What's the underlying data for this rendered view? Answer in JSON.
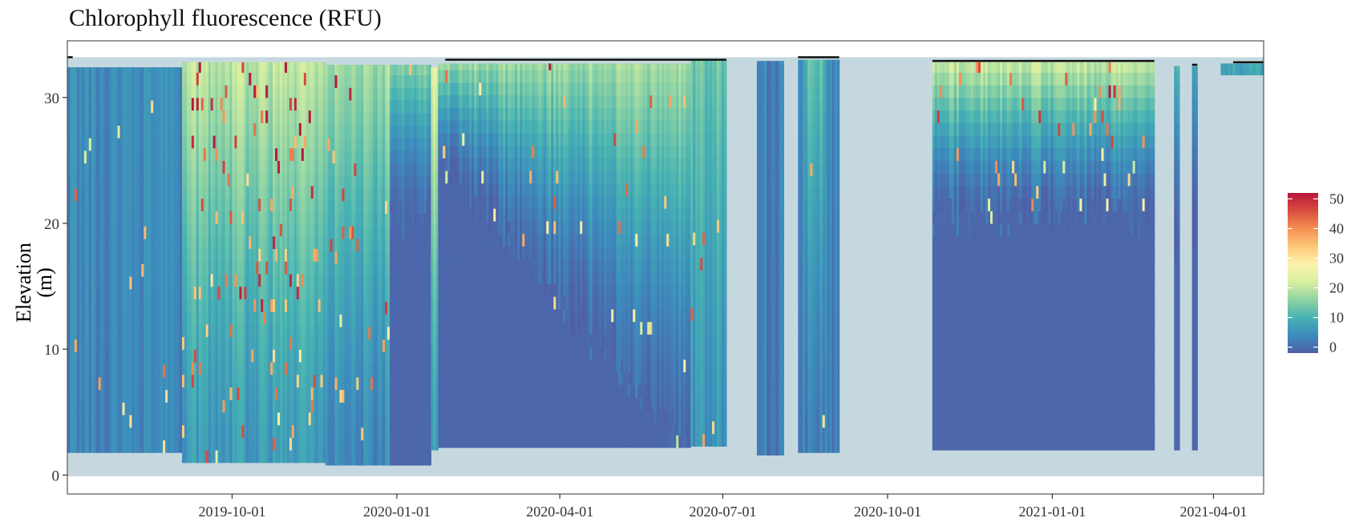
{
  "chart_data": {
    "type": "heatmap",
    "title": "Chlorophyll fluorescence (RFU)",
    "xlabel": "",
    "ylabel": "Elevation (m)",
    "x_ticks": [
      "2019-10-01",
      "2020-01-01",
      "2020-04-01",
      "2020-07-01",
      "2020-10-01",
      "2021-01-01",
      "2021-04-01"
    ],
    "y_ticks": [
      0,
      10,
      20,
      30
    ],
    "xlim": [
      "2019-07-01",
      "2021-04-29"
    ],
    "ylim": [
      -1.5,
      34.5
    ],
    "colorbar": {
      "label": "",
      "ticks": [
        0,
        10,
        20,
        30,
        40,
        50
      ],
      "range": [
        -2,
        52
      ],
      "colors": [
        "#4f5fa8",
        "#3c8cbd",
        "#47b3b2",
        "#8fd3a4",
        "#d8efa0",
        "#fdf3ac",
        "#fdc877",
        "#f58e52",
        "#d94e3f",
        "#b7163e"
      ]
    },
    "background": {
      "water_color": "#c6d8df",
      "sediment_color": "#cfd3e4"
    },
    "segments": [
      {
        "start": "2019-07-01",
        "end": "2019-09-03",
        "bottom": 1.8,
        "top": 32.4,
        "surface_chl": 4,
        "mid_chl": 3,
        "deep_chl": 3,
        "chl_depth_top": 0,
        "speckle": 0.05
      },
      {
        "start": "2019-09-03",
        "end": "2019-11-22",
        "bottom": 1.0,
        "top": 32.8,
        "surface_chl": 20,
        "mid_chl": 10,
        "deep_chl": 6,
        "chl_depth_top": 0,
        "speckle": 0.45
      },
      {
        "start": "2019-11-22",
        "end": "2019-12-28",
        "bottom": 0.8,
        "top": 32.6,
        "surface_chl": 18,
        "mid_chl": 8,
        "deep_chl": 4,
        "chl_depth_top": 0,
        "speckle": 0.2
      },
      {
        "start": "2019-12-28",
        "end": "2020-01-20",
        "bottom": 0.8,
        "top": 32.6,
        "surface_chl": 16,
        "mid_chl": 0,
        "deep_chl": 0,
        "chl_depth_top": 21,
        "speckle": 0.1
      },
      {
        "start": "2020-01-20",
        "end": "2020-01-24",
        "bottom": 2.0,
        "top": 32.4,
        "surface_chl": 25,
        "mid_chl": 12,
        "deep_chl": 8,
        "chl_depth_top": 0,
        "speckle": 0.1
      },
      {
        "start": "2020-01-24",
        "end": "2020-06-13",
        "bottom": 2.2,
        "top": 32.7,
        "surface_chl": 18,
        "mid_chl": 0,
        "deep_chl": 0,
        "chl_depth_top": 25,
        "chl_depth_end": 2.5,
        "speckle": 0.15
      },
      {
        "start": "2020-06-13",
        "end": "2020-07-03",
        "bottom": 2.3,
        "top": 33.0,
        "surface_chl": 14,
        "mid_chl": 8,
        "deep_chl": 6,
        "chl_depth_top": 0,
        "speckle": 0.1
      },
      {
        "start": "2020-07-20",
        "end": "2020-08-04",
        "bottom": 1.6,
        "top": 32.9,
        "surface_chl": 3,
        "mid_chl": 2,
        "deep_chl": 2,
        "chl_depth_top": 0,
        "speckle": 0.0
      },
      {
        "start": "2020-08-12",
        "end": "2020-08-16",
        "bottom": 1.8,
        "top": 33.0,
        "surface_chl": 5,
        "mid_chl": 3,
        "deep_chl": 2,
        "chl_depth_top": 0,
        "speckle": 0.0
      },
      {
        "start": "2020-08-16",
        "end": "2020-08-27",
        "bottom": 1.8,
        "top": 33.0,
        "surface_chl": 12,
        "mid_chl": 5,
        "deep_chl": 2,
        "chl_depth_top": 0,
        "speckle": 0.1
      },
      {
        "start": "2020-08-27",
        "end": "2020-09-04",
        "bottom": 1.8,
        "top": 33.0,
        "surface_chl": 4,
        "mid_chl": 2,
        "deep_chl": 2,
        "chl_depth_top": 0,
        "speckle": 0.0
      },
      {
        "start": "2020-10-26",
        "end": "2021-02-27",
        "bottom": 2.0,
        "top": 32.8,
        "surface_chl": 22,
        "mid_chl": 0,
        "deep_chl": 0,
        "chl_depth_top": 21,
        "speckle": 0.3
      },
      {
        "start": "2021-03-10",
        "end": "2021-03-13",
        "bottom": 2.0,
        "top": 32.5,
        "surface_chl": 12,
        "mid_chl": 0,
        "deep_chl": 0,
        "chl_depth_top": 18,
        "speckle": 0.0
      },
      {
        "start": "2021-03-20",
        "end": "2021-03-23",
        "bottom": 2.0,
        "top": 32.5,
        "surface_chl": 10,
        "mid_chl": 0,
        "deep_chl": 0,
        "chl_depth_top": 19,
        "speckle": 0.0
      },
      {
        "start": "2021-04-05",
        "end": "2021-04-29",
        "bottom": 31.8,
        "top": 32.7,
        "surface_chl": 8,
        "mid_chl": 8,
        "deep_chl": 8,
        "chl_depth_top": 0,
        "speckle": 0.0
      }
    ],
    "water_surface": [
      {
        "start": "2019-07-01",
        "end": "2019-07-04",
        "level": 33.2
      },
      {
        "start": "2020-01-28",
        "end": "2020-07-03",
        "level": 33.0
      },
      {
        "start": "2020-08-12",
        "end": "2020-09-04",
        "level": 33.2
      },
      {
        "start": "2020-10-26",
        "end": "2021-02-27",
        "level": 32.9
      },
      {
        "start": "2021-03-20",
        "end": "2021-03-23",
        "level": 32.6
      },
      {
        "start": "2021-04-12",
        "end": "2021-04-29",
        "level": 32.8
      }
    ]
  }
}
